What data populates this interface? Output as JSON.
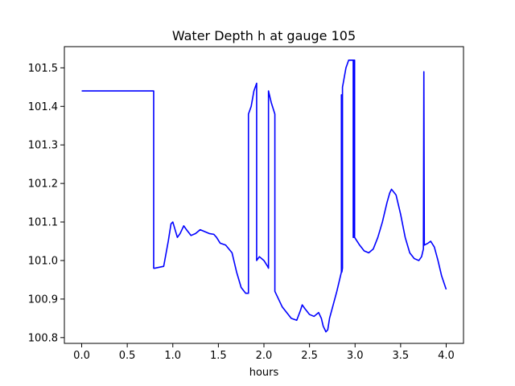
{
  "chart_data": {
    "type": "line",
    "title": "Water Depth h at gauge 105",
    "xlabel": "hours",
    "ylabel": "",
    "xlim": [
      -0.19,
      4.19
    ],
    "ylim": [
      100.785,
      101.555
    ],
    "xticks": [
      0.0,
      0.5,
      1.0,
      1.5,
      2.0,
      2.5,
      3.0,
      3.5,
      4.0
    ],
    "xtick_labels": [
      "0.0",
      "0.5",
      "1.0",
      "1.5",
      "2.0",
      "2.5",
      "3.0",
      "3.5",
      "4.0"
    ],
    "yticks": [
      100.8,
      100.9,
      101.0,
      101.1,
      101.2,
      101.3,
      101.4,
      101.5
    ],
    "ytick_labels": [
      "100.8",
      "100.9",
      "101.0",
      "101.1",
      "101.2",
      "101.3",
      "101.4",
      "101.5"
    ],
    "grid": false,
    "series": [
      {
        "color": "#0000ff",
        "x": [
          0.0,
          0.4,
          0.79,
          0.79,
          0.8,
          0.9,
          0.95,
          0.98,
          1.0,
          1.05,
          1.08,
          1.12,
          1.15,
          1.2,
          1.25,
          1.3,
          1.35,
          1.4,
          1.45,
          1.48,
          1.52,
          1.58,
          1.65,
          1.7,
          1.75,
          1.8,
          1.83,
          1.83,
          1.86,
          1.89,
          1.92,
          1.92,
          1.95,
          2.0,
          2.04,
          2.05,
          2.05,
          2.08,
          2.12,
          2.12,
          2.2,
          2.3,
          2.36,
          2.4,
          2.42,
          2.45,
          2.5,
          2.55,
          2.6,
          2.63,
          2.65,
          2.68,
          2.7,
          2.72,
          2.8,
          2.85,
          2.85,
          2.855,
          2.855,
          2.862,
          2.862,
          2.87,
          2.9,
          2.93,
          2.95,
          2.97,
          2.98,
          2.98,
          2.985,
          2.985,
          2.995,
          2.995,
          3.05,
          3.1,
          3.15,
          3.2,
          3.25,
          3.3,
          3.35,
          3.38,
          3.4,
          3.45,
          3.5,
          3.55,
          3.6,
          3.65,
          3.7,
          3.73,
          3.75,
          3.755,
          3.755,
          3.76,
          3.76,
          3.8,
          3.83,
          3.87,
          3.91,
          3.95,
          4.0
        ],
        "y": [
          101.44,
          101.44,
          101.44,
          100.98,
          100.98,
          100.985,
          101.05,
          101.095,
          101.1,
          101.06,
          101.07,
          101.09,
          101.08,
          101.065,
          101.07,
          101.08,
          101.075,
          101.07,
          101.068,
          101.06,
          101.045,
          101.04,
          101.02,
          100.97,
          100.93,
          100.915,
          100.915,
          101.38,
          101.4,
          101.44,
          101.46,
          101.0,
          101.01,
          101.0,
          100.985,
          100.98,
          101.44,
          101.41,
          101.38,
          100.92,
          100.88,
          100.85,
          100.845,
          100.87,
          100.885,
          100.875,
          100.86,
          100.855,
          100.865,
          100.85,
          100.83,
          100.815,
          100.82,
          100.85,
          100.92,
          100.97,
          101.43,
          101.43,
          100.97,
          100.98,
          101.45,
          101.46,
          101.5,
          101.52,
          101.52,
          101.52,
          101.52,
          101.06,
          101.06,
          101.52,
          101.52,
          101.06,
          101.04,
          101.025,
          101.02,
          101.03,
          101.06,
          101.1,
          101.15,
          101.175,
          101.185,
          101.17,
          101.12,
          101.06,
          101.02,
          101.005,
          101.0,
          101.01,
          101.03,
          101.49,
          101.49,
          101.04,
          101.04,
          101.045,
          101.05,
          101.035,
          101.0,
          100.96,
          100.925
        ]
      }
    ]
  }
}
